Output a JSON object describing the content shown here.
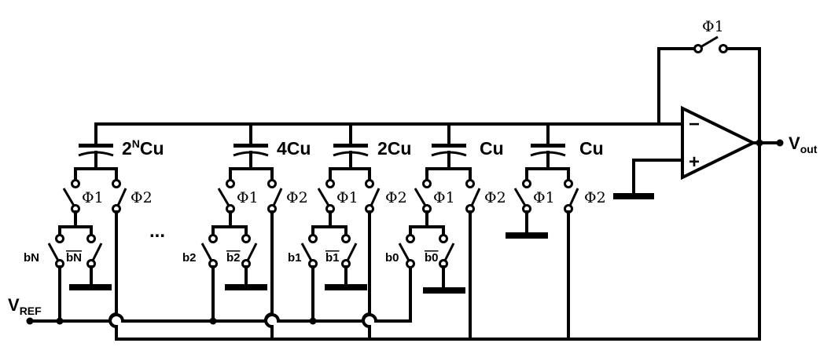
{
  "labels": {
    "vref_main": "V",
    "vref_sub": "REF",
    "vout_main": "V",
    "vout_sub": "out",
    "phi1": "Φ1",
    "phi2": "Φ2",
    "ellipsis": "...",
    "opamp_minus": "−",
    "opamp_plus": "+"
  },
  "branches": [
    {
      "cap_main": "2",
      "cap_sup": "N",
      "cap_tail": "Cu",
      "bit": "bN",
      "bitbar": "bN"
    },
    {
      "cap_main": "4Cu",
      "cap_sup": "",
      "cap_tail": "",
      "bit": "b2",
      "bitbar": "b2"
    },
    {
      "cap_main": "2Cu",
      "cap_sup": "",
      "cap_tail": "",
      "bit": "b1",
      "bitbar": "b1"
    },
    {
      "cap_main": "Cu",
      "cap_sup": "",
      "cap_tail": "",
      "bit": "b0",
      "bitbar": "b0"
    },
    {
      "cap_main": "Cu",
      "cap_sup": "",
      "cap_tail": "",
      "bit": "",
      "bitbar": ""
    }
  ]
}
